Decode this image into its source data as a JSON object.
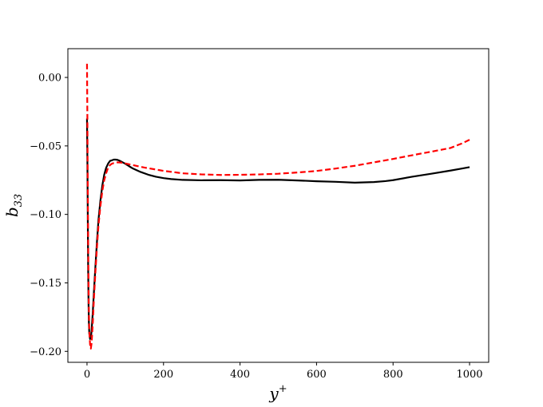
{
  "chart_data": {
    "type": "line",
    "title": "",
    "xlabel": {
      "base": "y",
      "sup": "+"
    },
    "ylabel": {
      "base": "b",
      "sub": "33"
    },
    "xlim": [
      -50,
      1050
    ],
    "ylim": [
      -0.208,
      0.021
    ],
    "xticks": [
      0,
      200,
      400,
      600,
      800,
      1000
    ],
    "xtick_labels": [
      "0",
      "200",
      "400",
      "600",
      "800",
      "1000"
    ],
    "yticks": [
      0.0,
      -0.05,
      -0.1,
      -0.15,
      -0.2
    ],
    "ytick_labels": [
      "0.00",
      "−0.05",
      "−0.10",
      "−0.15",
      "−0.20"
    ],
    "grid": false,
    "legend": null,
    "series": [
      {
        "color": "#000000",
        "style": "solid",
        "x": [
          0,
          1,
          2,
          3,
          4,
          5,
          6,
          8,
          10,
          12,
          15,
          18,
          22,
          26,
          30,
          35,
          40,
          45,
          50,
          55,
          60,
          65,
          70,
          75,
          80,
          85,
          90,
          100,
          110,
          120,
          140,
          160,
          180,
          200,
          220,
          250,
          300,
          350,
          400,
          450,
          500,
          550,
          600,
          650,
          700,
          750,
          780,
          800,
          850,
          900,
          950,
          980,
          1000
        ],
        "y": [
          -0.03,
          -0.06,
          -0.1,
          -0.14,
          -0.165,
          -0.18,
          -0.187,
          -0.191,
          -0.19,
          -0.185,
          -0.172,
          -0.157,
          -0.138,
          -0.12,
          -0.104,
          -0.09,
          -0.079,
          -0.071,
          -0.066,
          -0.063,
          -0.061,
          -0.0605,
          -0.06,
          -0.06,
          -0.0602,
          -0.0608,
          -0.0615,
          -0.063,
          -0.0648,
          -0.0665,
          -0.069,
          -0.071,
          -0.0725,
          -0.0735,
          -0.0742,
          -0.0748,
          -0.0751,
          -0.075,
          -0.0752,
          -0.0748,
          -0.0747,
          -0.0752,
          -0.0758,
          -0.0762,
          -0.0768,
          -0.0764,
          -0.0757,
          -0.075,
          -0.0725,
          -0.0703,
          -0.068,
          -0.0665,
          -0.0655
        ]
      },
      {
        "color": "#ff0000",
        "style": "dashed",
        "x": [
          0,
          1,
          2,
          3,
          4,
          5,
          6,
          8,
          10,
          12,
          15,
          18,
          22,
          26,
          30,
          35,
          40,
          45,
          50,
          55,
          60,
          65,
          70,
          80,
          90,
          100,
          120,
          150,
          200,
          250,
          300,
          350,
          400,
          450,
          500,
          550,
          600,
          650,
          700,
          750,
          800,
          850,
          900,
          950,
          980,
          1000
        ],
        "y": [
          0.01,
          -0.03,
          -0.08,
          -0.12,
          -0.15,
          -0.172,
          -0.185,
          -0.195,
          -0.198,
          -0.194,
          -0.18,
          -0.162,
          -0.142,
          -0.124,
          -0.108,
          -0.094,
          -0.083,
          -0.075,
          -0.07,
          -0.066,
          -0.064,
          -0.063,
          -0.0625,
          -0.062,
          -0.0622,
          -0.0628,
          -0.064,
          -0.0658,
          -0.0682,
          -0.07,
          -0.0708,
          -0.0712,
          -0.0711,
          -0.0708,
          -0.0703,
          -0.0694,
          -0.0683,
          -0.0665,
          -0.0645,
          -0.062,
          -0.0595,
          -0.0568,
          -0.0542,
          -0.0515,
          -0.0482,
          -0.0455
        ]
      }
    ]
  }
}
